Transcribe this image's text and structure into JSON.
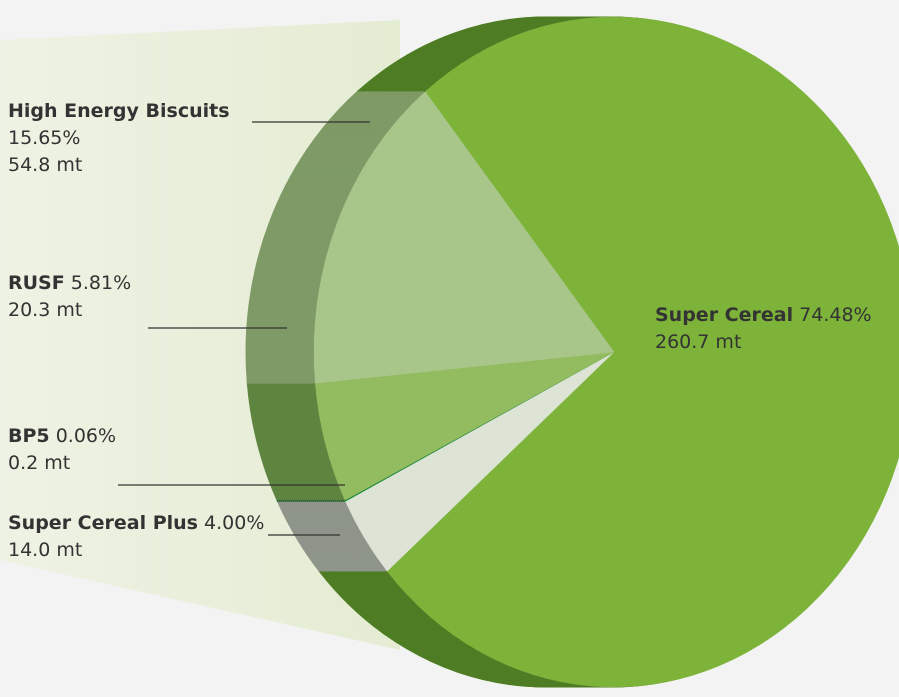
{
  "chart_data": {
    "type": "pie",
    "categories": [
      "Super Cereal",
      "Super Cereal Plus",
      "BP5",
      "RUSF",
      "High Energy Biscuits"
    ],
    "values": [
      74.48,
      4.0,
      0.06,
      5.81,
      15.65
    ],
    "value_labels": [
      "74.48%",
      "4.00%",
      "0.06%",
      "5.81%",
      "15.65%"
    ],
    "amounts": [
      260.7,
      14.0,
      0.2,
      20.3,
      54.8
    ],
    "amount_labels": [
      "260.7 mt",
      "14.0 mt",
      "0.2 mt",
      "20.3 mt",
      "54.8 mt"
    ],
    "colors": [
      "#7db339",
      "#dde3d5",
      "#1e8a3c",
      "#93bb5f",
      "#a9c68a"
    ],
    "side_colors": [
      "#4f7d25",
      "#8f958a",
      "#145a28",
      "#5f8540",
      "#7f9a66"
    ]
  }
}
